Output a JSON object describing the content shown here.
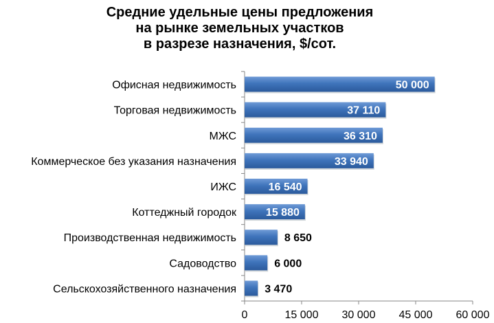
{
  "chart_data": {
    "type": "bar",
    "orientation": "horizontal",
    "title_lines": [
      "Средние удельные цены предложения",
      "на рынке земельных участков",
      "в разрезе назначения, $/сот."
    ],
    "categories": [
      "Офисная недвижимость",
      "Торговая недвижимость",
      "МЖС",
      "Коммерческое без указания назначения",
      "ИЖС",
      "Коттеджный городок",
      "Производственная недвижимость",
      "Садоводство",
      "Сельскохозяйственного назначения"
    ],
    "values": [
      50000,
      37110,
      36310,
      33940,
      16540,
      15880,
      8650,
      6000,
      3470
    ],
    "value_labels": [
      "50 000",
      "37 110",
      "36 310",
      "33 940",
      "16 540",
      "15 880",
      "8 650",
      "6 000",
      "3 470"
    ],
    "xlim": [
      0,
      60000
    ],
    "x_ticks": [
      0,
      15000,
      30000,
      45000,
      60000
    ],
    "x_tick_labels": [
      "0",
      "15 000",
      "30 000",
      "45 000",
      "60 000"
    ],
    "grid": false,
    "legend": "none",
    "bar_color": "#3a6fb0"
  }
}
